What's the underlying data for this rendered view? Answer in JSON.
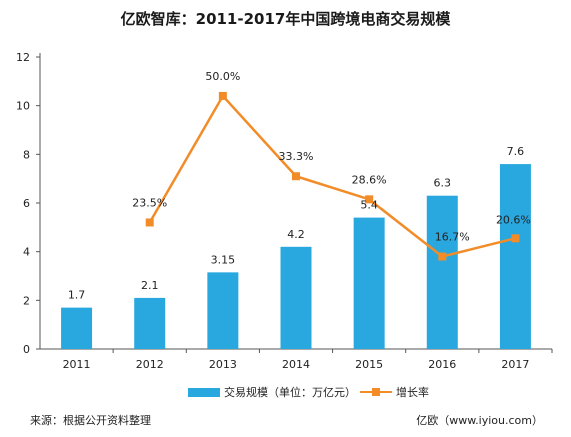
{
  "title": "亿欧智库：2011-2017年中国跨境电商交易规模",
  "source": "来源：根据公开资料整理",
  "brand": "亿欧（www.iyiou.com）",
  "colors": {
    "bar": "#29a8df",
    "line": "#f28c28"
  },
  "chart_data": {
    "type": "bar",
    "categories": [
      "2011",
      "2012",
      "2013",
      "2014",
      "2015",
      "2016",
      "2017"
    ],
    "ylim": [
      0,
      12
    ],
    "yticks": [
      0,
      2,
      4,
      6,
      8,
      10,
      12
    ],
    "grid": false,
    "legend_position": "bottom",
    "series": [
      {
        "name": "交易规模（单位：万亿元）",
        "kind": "bar",
        "values": [
          1.7,
          2.1,
          3.15,
          4.2,
          5.4,
          6.3,
          7.6
        ],
        "labels": [
          "1.7",
          "2.1",
          "3.15",
          "4.2",
          "5.4",
          "6.3",
          "7.6"
        ]
      },
      {
        "name": "增长率",
        "kind": "line",
        "plotted_on_left_axis": [
          null,
          5.2,
          10.4,
          7.1,
          6.15,
          3.8,
          4.55
        ],
        "values_percent": [
          null,
          23.5,
          50.0,
          33.3,
          28.6,
          16.7,
          20.6
        ],
        "labels": [
          null,
          "23.5%",
          "50.0%",
          "33.3%",
          "28.6%",
          "16.7%",
          "20.6%"
        ]
      }
    ]
  }
}
